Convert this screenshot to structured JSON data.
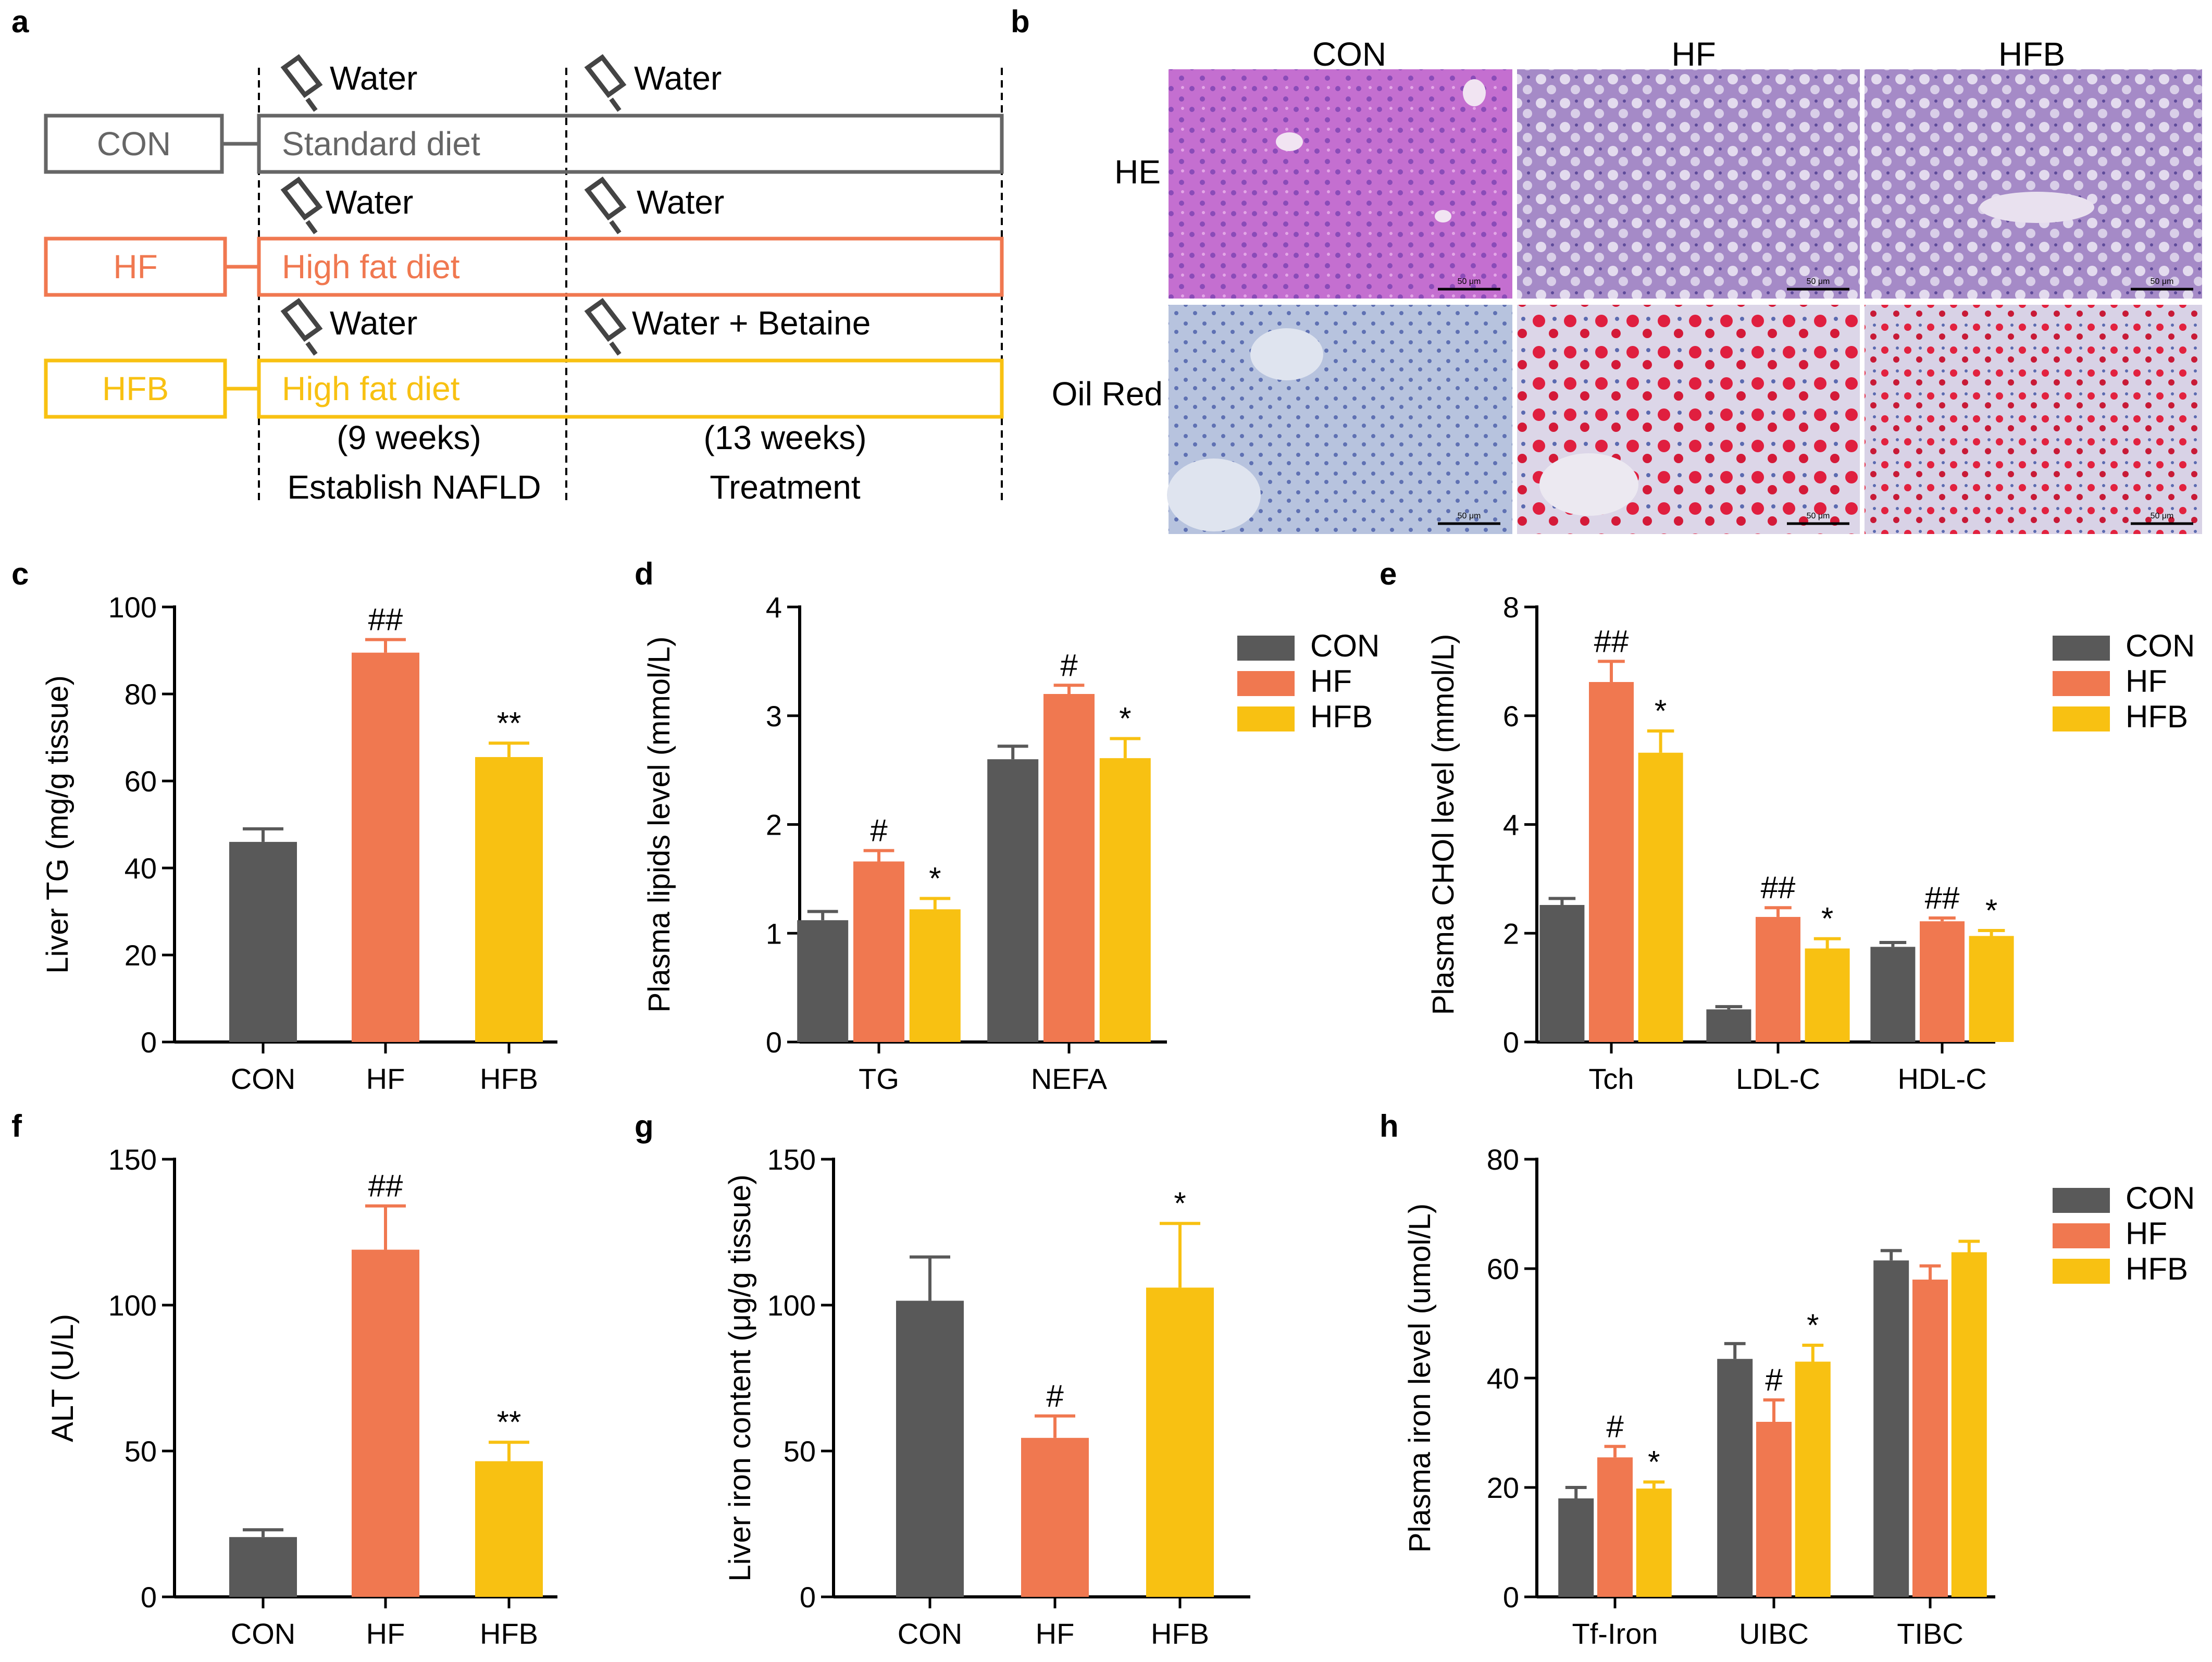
{
  "colors": {
    "CON": "#595959",
    "HF": "#F07850",
    "HFB": "#F8C112"
  },
  "panel_labels": [
    "a",
    "b",
    "c",
    "d",
    "e",
    "f",
    "g",
    "h"
  ],
  "schematic": {
    "groups": [
      {
        "name": "CON",
        "diet": "Standard diet",
        "drink1": "Water",
        "drink2": "Water"
      },
      {
        "name": "HF",
        "diet": "High fat diet",
        "drink1": "Water",
        "drink2": "Water"
      },
      {
        "name": "HFB",
        "diet": "High fat diet",
        "drink1": "Water",
        "drink2": "Water + Betaine"
      }
    ],
    "phase1_duration": "(9 weeks)",
    "phase1_label": "Establish NAFLD",
    "phase2_duration": "(13 weeks)",
    "phase2_label": "Treatment"
  },
  "histology": {
    "columns": [
      "CON",
      "HF",
      "HFB"
    ],
    "rows": [
      "HE",
      "Oil Red"
    ],
    "scale_label": "50 μm"
  },
  "chart_data": [
    {
      "id": "c",
      "type": "bar",
      "ylabel": "Liver TG (mg/g tissue)",
      "ylim": [
        0,
        100
      ],
      "yticks": [
        0,
        20,
        40,
        60,
        80,
        100
      ],
      "categories": [
        "CON",
        "HF",
        "HFB"
      ],
      "values": [
        46,
        89.5,
        65.5
      ],
      "errors": [
        3,
        3,
        3.2
      ],
      "annotations": [
        "",
        "##",
        "**"
      ]
    },
    {
      "id": "d",
      "type": "bar",
      "ylabel": "Plasma lipids level (mmol/L)",
      "ylim": [
        0,
        4
      ],
      "yticks": [
        0,
        1,
        2,
        3,
        4
      ],
      "categories": [
        "TG",
        "NEFA"
      ],
      "legend": [
        "CON",
        "HF",
        "HFB"
      ],
      "series": [
        {
          "name": "CON",
          "values": [
            1.12,
            2.6
          ],
          "errors": [
            0.08,
            0.12
          ],
          "annotations": [
            "",
            ""
          ]
        },
        {
          "name": "HF",
          "values": [
            1.66,
            3.2
          ],
          "errors": [
            0.1,
            0.08
          ],
          "annotations": [
            "#",
            "#"
          ]
        },
        {
          "name": "HFB",
          "values": [
            1.22,
            2.61
          ],
          "errors": [
            0.1,
            0.18
          ],
          "annotations": [
            "*",
            "*"
          ]
        }
      ]
    },
    {
      "id": "e",
      "type": "bar",
      "ylabel": "Plasma CHOl level (mmol/L)",
      "ylim": [
        0,
        8
      ],
      "yticks": [
        0,
        2,
        4,
        6,
        8
      ],
      "categories": [
        "Tch",
        "LDL-C",
        "HDL-C"
      ],
      "legend": [
        "CON",
        "HF",
        "HFB"
      ],
      "series": [
        {
          "name": "CON",
          "values": [
            2.52,
            0.6,
            1.75
          ],
          "errors": [
            0.12,
            0.05,
            0.08
          ],
          "annotations": [
            "",
            "",
            ""
          ]
        },
        {
          "name": "HF",
          "values": [
            6.62,
            2.3,
            2.22
          ],
          "errors": [
            0.38,
            0.17,
            0.06
          ],
          "annotations": [
            "##",
            "##",
            "##"
          ]
        },
        {
          "name": "HFB",
          "values": [
            5.32,
            1.72,
            1.95
          ],
          "errors": [
            0.4,
            0.18,
            0.1
          ],
          "annotations": [
            "*",
            "*",
            "*"
          ]
        }
      ]
    },
    {
      "id": "f",
      "type": "bar",
      "ylabel": "ALT (U/L)",
      "ylim": [
        0,
        150
      ],
      "yticks": [
        0,
        50,
        100,
        150
      ],
      "categories": [
        "CON",
        "HF",
        "HFB"
      ],
      "values": [
        20.5,
        119,
        46.5
      ],
      "errors": [
        2.5,
        15,
        6.5
      ],
      "annotations": [
        "",
        "##",
        "**"
      ]
    },
    {
      "id": "g",
      "type": "bar",
      "ylabel": "Liver iron content (μg/g tissue)",
      "ylim": [
        0,
        150
      ],
      "yticks": [
        0,
        50,
        100,
        150
      ],
      "categories": [
        "CON",
        "HF",
        "HFB"
      ],
      "values": [
        101.5,
        54.5,
        106
      ],
      "errors": [
        15,
        7.5,
        22
      ],
      "annotations": [
        "",
        "#",
        "*"
      ]
    },
    {
      "id": "h",
      "type": "bar",
      "ylabel": "Plasma iron level (umol/L)",
      "ylim": [
        0,
        80
      ],
      "yticks": [
        0,
        20,
        40,
        60,
        80
      ],
      "categories": [
        "Tf-Iron",
        "UIBC",
        "TIBC"
      ],
      "legend": [
        "CON",
        "HF",
        "HFB"
      ],
      "series": [
        {
          "name": "CON",
          "values": [
            18,
            43.5,
            61.5
          ],
          "errors": [
            2,
            2.8,
            1.8
          ],
          "annotations": [
            "",
            "",
            ""
          ]
        },
        {
          "name": "HF",
          "values": [
            25.5,
            32,
            58
          ],
          "errors": [
            2,
            4,
            2.5
          ],
          "annotations": [
            "#",
            "#",
            ""
          ]
        },
        {
          "name": "HFB",
          "values": [
            19.8,
            43,
            63
          ],
          "errors": [
            1.2,
            3,
            2
          ],
          "annotations": [
            "*",
            "*",
            ""
          ]
        }
      ]
    }
  ]
}
